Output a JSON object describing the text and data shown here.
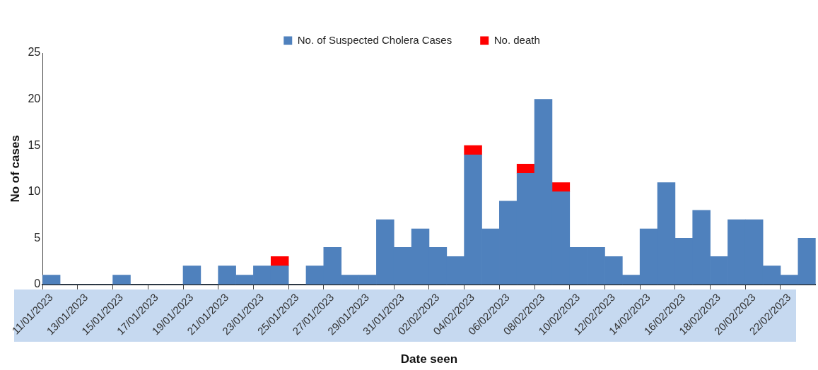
{
  "chart_data": {
    "type": "bar",
    "stacked": true,
    "xlabel": "Date seen",
    "ylabel": "No of cases",
    "categories": [
      "11/01/2023",
      null,
      "13/01/2023",
      null,
      "15/01/2023",
      null,
      "17/01/2023",
      null,
      "19/01/2023",
      null,
      "21/01/2023",
      null,
      "23/01/2023",
      null,
      "25/01/2023",
      null,
      "27/01/2023",
      null,
      "29/01/2023",
      null,
      "31/01/2023",
      null,
      "02/02/2023",
      null,
      "04/02/2023",
      null,
      "06/02/2023",
      null,
      "08/02/2023",
      null,
      "10/02/2023",
      null,
      "12/02/2023",
      null,
      "14/02/2023",
      null,
      "16/02/2023",
      null,
      "18/02/2023",
      null,
      "20/02/2023",
      null,
      "22/02/2023",
      null
    ],
    "series": [
      {
        "name": "No. of Suspected Cholera Cases",
        "color": "#4f81bd",
        "values": [
          1,
          0,
          0,
          0,
          1,
          0,
          0,
          0,
          2,
          0,
          2,
          1,
          2,
          2,
          0,
          2,
          4,
          1,
          1,
          7,
          4,
          6,
          4,
          3,
          14,
          6,
          9,
          12,
          20,
          10,
          4,
          4,
          3,
          1,
          6,
          11,
          5,
          8,
          3,
          7,
          7,
          2,
          1,
          5
        ]
      },
      {
        "name": "No. death",
        "color": "#ff0000",
        "values": [
          null,
          null,
          null,
          null,
          null,
          null,
          null,
          null,
          null,
          null,
          null,
          null,
          null,
          1,
          null,
          null,
          null,
          null,
          null,
          null,
          null,
          null,
          null,
          null,
          1,
          null,
          null,
          1,
          null,
          1,
          null,
          null,
          null,
          null,
          null,
          null,
          null,
          null,
          null,
          null,
          null,
          null,
          null,
          null
        ]
      }
    ],
    "ylim": [
      0,
      25
    ],
    "yticks": [
      0,
      5,
      10,
      15,
      20,
      25
    ],
    "grid": false,
    "legend": "top"
  }
}
